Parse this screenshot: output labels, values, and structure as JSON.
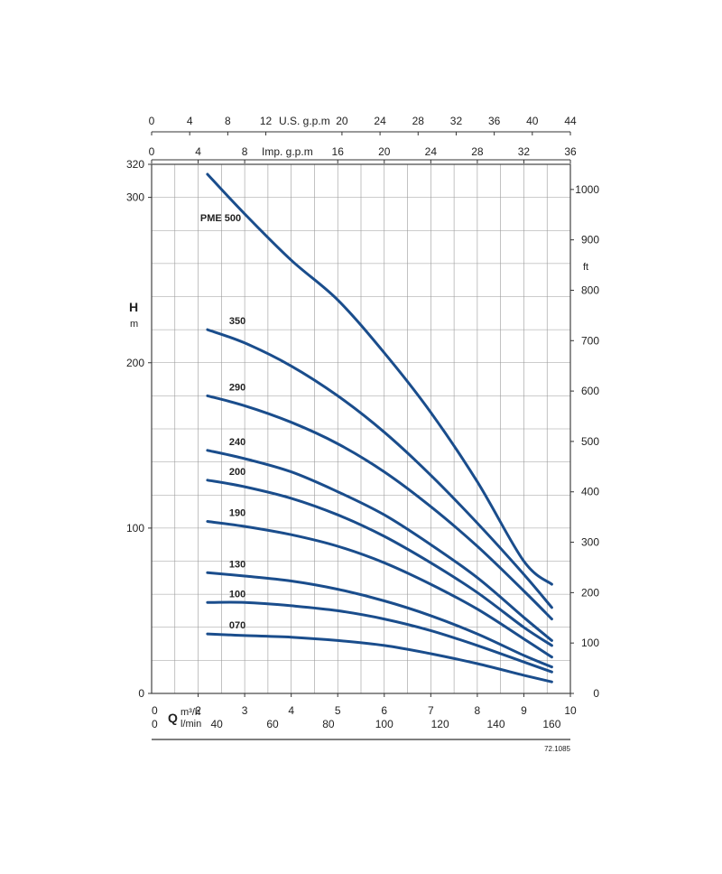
{
  "chart_data": {
    "type": "line",
    "title": "",
    "ylabel": "H",
    "yunit": "m",
    "ylim": [
      0,
      320
    ],
    "xlim": [
      1,
      10
    ],
    "y_ticks": [
      "0",
      "100",
      "200",
      "300",
      "320"
    ],
    "y_right_unit": "ft",
    "y_right_ticks": [
      "0",
      "100",
      "200",
      "300",
      "400",
      "500",
      "600",
      "700",
      "800",
      "900",
      "1000"
    ],
    "x_axis_symbol": "Q",
    "x_bottom_m3h": {
      "unit": "m³/h",
      "zero": "0",
      "ticks": [
        "2",
        "3",
        "4",
        "5",
        "6",
        "7",
        "8",
        "9",
        "10"
      ]
    },
    "x_bottom_lmin": {
      "unit": "l/min",
      "zero": "0",
      "ticks": [
        "40",
        "60",
        "80",
        "100",
        "120",
        "140",
        "160"
      ]
    },
    "x_top_usgpm": {
      "unit": "U.S. g.p.m",
      "ticks": [
        "0",
        "4",
        "8",
        "12",
        "20",
        "24",
        "28",
        "32",
        "36",
        "40",
        "44"
      ]
    },
    "x_top_impgpm": {
      "unit": "Imp. g.p.m",
      "ticks": [
        "0",
        "4",
        "8",
        "16",
        "20",
        "24",
        "28",
        "32",
        "36"
      ]
    },
    "series": [
      {
        "name": "PME 500",
        "points": [
          [
            2.2,
            314
          ],
          [
            3.0,
            290
          ],
          [
            4.0,
            262
          ],
          [
            5.0,
            238
          ],
          [
            6.0,
            206
          ],
          [
            7.0,
            170
          ],
          [
            8.0,
            128
          ],
          [
            9.0,
            80
          ],
          [
            9.6,
            66
          ]
        ]
      },
      {
        "name": "350",
        "points": [
          [
            2.2,
            220
          ],
          [
            3.0,
            212
          ],
          [
            4.0,
            198
          ],
          [
            5.0,
            180
          ],
          [
            6.0,
            158
          ],
          [
            7.0,
            132
          ],
          [
            8.0,
            103
          ],
          [
            9.0,
            72
          ],
          [
            9.6,
            52
          ]
        ]
      },
      {
        "name": "290",
        "points": [
          [
            2.2,
            180
          ],
          [
            3.0,
            174
          ],
          [
            4.0,
            164
          ],
          [
            5.0,
            151
          ],
          [
            6.0,
            134
          ],
          [
            7.0,
            113
          ],
          [
            8.0,
            89
          ],
          [
            9.0,
            62
          ],
          [
            9.6,
            45
          ]
        ]
      },
      {
        "name": "240",
        "points": [
          [
            2.2,
            147
          ],
          [
            3.0,
            142
          ],
          [
            4.0,
            134
          ],
          [
            5.0,
            122
          ],
          [
            6.0,
            108
          ],
          [
            7.0,
            90
          ],
          [
            8.0,
            70
          ],
          [
            9.0,
            46
          ],
          [
            9.6,
            32
          ]
        ]
      },
      {
        "name": "200",
        "points": [
          [
            2.2,
            129
          ],
          [
            3.0,
            125
          ],
          [
            4.0,
            118
          ],
          [
            5.0,
            108
          ],
          [
            6.0,
            95
          ],
          [
            7.0,
            79
          ],
          [
            8.0,
            61
          ],
          [
            9.0,
            40
          ],
          [
            9.6,
            29
          ]
        ]
      },
      {
        "name": "190",
        "points": [
          [
            2.2,
            104
          ],
          [
            3.0,
            101
          ],
          [
            4.0,
            96
          ],
          [
            5.0,
            89
          ],
          [
            6.0,
            79
          ],
          [
            7.0,
            66
          ],
          [
            8.0,
            51
          ],
          [
            9.0,
            33
          ],
          [
            9.6,
            22
          ]
        ]
      },
      {
        "name": "130",
        "points": [
          [
            2.2,
            73
          ],
          [
            3.0,
            71
          ],
          [
            4.0,
            68
          ],
          [
            5.0,
            63
          ],
          [
            6.0,
            56
          ],
          [
            7.0,
            47
          ],
          [
            8.0,
            36
          ],
          [
            9.0,
            23
          ],
          [
            9.6,
            16
          ]
        ]
      },
      {
        "name": "100",
        "points": [
          [
            2.2,
            55
          ],
          [
            3.0,
            55
          ],
          [
            4.0,
            53
          ],
          [
            5.0,
            50
          ],
          [
            6.0,
            45
          ],
          [
            7.0,
            38
          ],
          [
            8.0,
            29
          ],
          [
            9.0,
            19
          ],
          [
            9.6,
            13
          ]
        ]
      },
      {
        "name": "070",
        "points": [
          [
            2.2,
            36
          ],
          [
            3.0,
            35
          ],
          [
            4.0,
            34
          ],
          [
            5.0,
            32
          ],
          [
            6.0,
            29
          ],
          [
            7.0,
            24
          ],
          [
            8.0,
            18
          ],
          [
            9.0,
            11
          ],
          [
            9.6,
            7
          ]
        ]
      }
    ],
    "grid": true,
    "footnote": "72.1085"
  },
  "colors": {
    "curve": "#1a4d8c",
    "grid": "#9a9a9a",
    "text": "#222222"
  }
}
